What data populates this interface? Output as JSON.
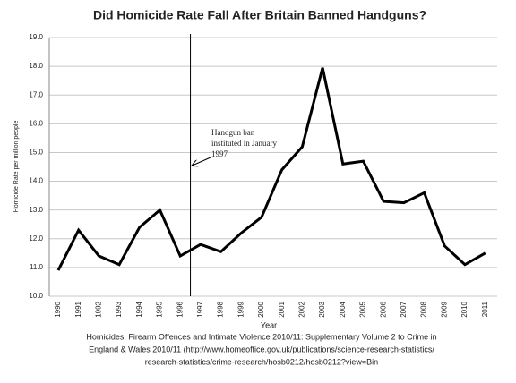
{
  "chart_data": {
    "type": "line",
    "title": "Did Homicide Rate Fall After Britain Banned Handguns?",
    "x_label": "Year",
    "y_label": "Homicide Rate per million people",
    "categories": [
      "1990",
      "1991",
      "1992",
      "1993",
      "1994",
      "1995",
      "1996",
      "1997",
      "1998",
      "1999",
      "2000",
      "2001",
      "2002",
      "2003",
      "2004",
      "2005",
      "2006",
      "2007",
      "2008",
      "2009",
      "2010",
      "2011"
    ],
    "series": [
      {
        "name": "Homicide rate",
        "color": "#000000",
        "values": [
          10.9,
          12.3,
          11.4,
          11.1,
          12.4,
          13.0,
          11.4,
          11.8,
          11.55,
          12.2,
          12.75,
          14.4,
          15.2,
          17.95,
          14.6,
          14.7,
          13.3,
          13.25,
          13.6,
          11.75,
          11.1,
          11.5
        ]
      }
    ],
    "ylim": [
      10,
      19
    ],
    "yticks": [
      {
        "value": 10,
        "label": "10.0"
      },
      {
        "value": 11,
        "label": "11.0"
      },
      {
        "value": 12,
        "label": "12.0"
      },
      {
        "value": 13,
        "label": "13.0"
      },
      {
        "value": 14,
        "label": "14.0"
      },
      {
        "value": 15,
        "label": "15.0"
      },
      {
        "value": 16,
        "label": "16.0"
      },
      {
        "value": 17,
        "label": "17.0"
      },
      {
        "value": 18,
        "label": "18.0"
      },
      {
        "value": 19,
        "label": "19.0"
      }
    ],
    "grid": true,
    "annotation": [
      "Handgun ban",
      "instituted in January",
      "1997"
    ],
    "source": [
      "Homicides, Firearm Offences and Intimate Violence 2010/11: Supplementary Volume 2 to Crime in",
      "England & Wales 2010/11 (http://www.homeoffice.gov.uk/publications/science-research-statistics/",
      "research-statistics/crime-research/hosb0212/hosb0212?view=Bin"
    ]
  }
}
